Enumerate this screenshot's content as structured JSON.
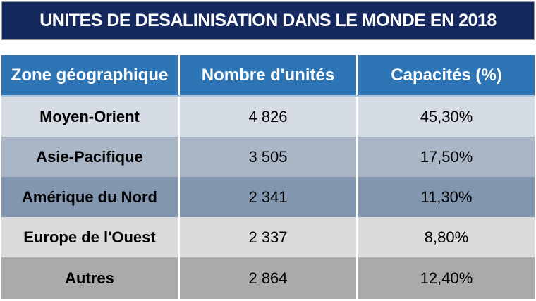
{
  "title": "UNITES DE DESALINISATION DANS LE MONDE EN 2018",
  "table": {
    "headers": [
      "Zone géographique",
      "Nombre d'unités",
      "Capacités (%)"
    ],
    "rows": [
      {
        "zone": "Moyen-Orient",
        "unites": "4 826",
        "capacite": "45,30%"
      },
      {
        "zone": "Asie-Pacifique",
        "unites": "3 505",
        "capacite": "17,50%"
      },
      {
        "zone": "Amérique du Nord",
        "unites": "2 341",
        "capacite": "11,30%"
      },
      {
        "zone": "Europe de l'Ouest",
        "unites": "2 337",
        "capacite": "8,80%"
      },
      {
        "zone": "Autres",
        "unites": "2 864",
        "capacite": "12,40%"
      }
    ]
  },
  "colors": {
    "title_bar_navy": "#16295F",
    "header_blue": "#2E75B6",
    "row_moyen_orient": "#D6DCE4",
    "row_asie_pacifique": "#A9B6C6",
    "row_amerique_du_nord": "#8296AF",
    "row_europe_ouest": "#DBDBDB",
    "row_autres": "#ACAAA8",
    "header_text": "#FFFFFF",
    "body_text": "#000000"
  },
  "chart_data": {
    "type": "table",
    "title": "UNITES DE DESALINISATION DANS LE MONDE EN 2018",
    "columns": [
      "Zone géographique",
      "Nombre d'unités",
      "Capacités (%)"
    ],
    "rows": [
      [
        "Moyen-Orient",
        "4 826",
        "45,30%"
      ],
      [
        "Asie-Pacifique",
        "3 505",
        "17,50%"
      ],
      [
        "Amérique du Nord",
        "2 341",
        "11,30%"
      ],
      [
        "Europe de l'Ouest",
        "2 337",
        "8,80%"
      ],
      [
        "Autres",
        "2 864",
        "12,40%"
      ]
    ],
    "numeric": {
      "zones": [
        "Moyen-Orient",
        "Asie-Pacifique",
        "Amérique du Nord",
        "Europe de l'Ouest",
        "Autres"
      ],
      "nombre_unites": [
        4826,
        3505,
        2341,
        2337,
        2864
      ],
      "capacites_pct": [
        45.3,
        17.5,
        11.3,
        8.8,
        12.4
      ]
    }
  }
}
